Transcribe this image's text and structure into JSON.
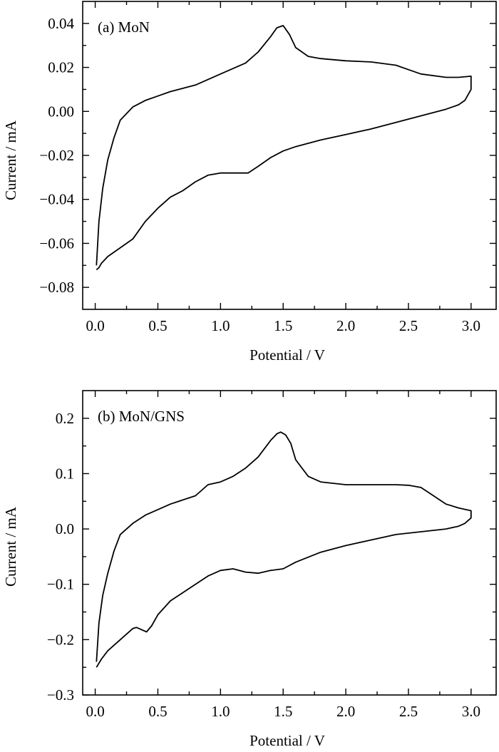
{
  "chart_data": [
    {
      "type": "line",
      "panel_label": "(a) MoN",
      "xlabel": "Potential / V",
      "ylabel": "Current / mA",
      "xlim": [
        -0.1,
        3.2
      ],
      "ylim": [
        -0.09,
        0.05
      ],
      "x_ticks": [
        0.0,
        0.5,
        1.0,
        1.5,
        2.0,
        2.5,
        3.0
      ],
      "x_tick_labels": [
        "0.0",
        "0.5",
        "1.0",
        "1.5",
        "2.0",
        "2.5",
        "3.0"
      ],
      "y_ticks": [
        -0.08,
        -0.06,
        -0.04,
        -0.02,
        0.0,
        0.02,
        0.04
      ],
      "y_tick_labels": [
        "−0.08",
        "−0.06",
        "−0.04",
        "−0.02",
        "0.00",
        "0.02",
        "0.04"
      ],
      "series": [
        {
          "x": [
            0.01,
            0.03,
            0.06,
            0.1,
            0.15,
            0.2,
            0.3,
            0.4,
            0.5,
            0.6,
            0.8,
            1.0,
            1.2,
            1.3,
            1.4,
            1.45,
            1.5,
            1.55,
            1.6,
            1.7,
            1.8,
            2.0,
            2.2,
            2.4,
            2.5,
            2.6,
            2.8,
            2.9,
            3.0,
            3.0,
            2.95,
            2.9,
            2.8,
            2.6,
            2.4,
            2.2,
            2.0,
            1.8,
            1.6,
            1.5,
            1.4,
            1.3,
            1.22,
            1.1,
            1.0,
            0.9,
            0.8,
            0.7,
            0.6,
            0.5,
            0.4,
            0.3,
            0.2,
            0.1,
            0.05,
            0.03,
            0.01
          ],
          "y": [
            -0.07,
            -0.05,
            -0.035,
            -0.022,
            -0.012,
            -0.004,
            0.002,
            0.005,
            0.007,
            0.009,
            0.012,
            0.017,
            0.022,
            0.027,
            0.034,
            0.038,
            0.039,
            0.035,
            0.029,
            0.025,
            0.024,
            0.023,
            0.0225,
            0.021,
            0.019,
            0.017,
            0.0155,
            0.0155,
            0.016,
            0.01,
            0.005,
            0.003,
            0.001,
            -0.002,
            -0.005,
            -0.008,
            -0.0105,
            -0.013,
            -0.016,
            -0.018,
            -0.021,
            -0.025,
            -0.028,
            -0.028,
            -0.028,
            -0.029,
            -0.032,
            -0.036,
            -0.039,
            -0.044,
            -0.05,
            -0.058,
            -0.062,
            -0.066,
            -0.069,
            -0.071,
            -0.072
          ]
        }
      ]
    },
    {
      "type": "line",
      "panel_label": "(b) MoN/GNS",
      "xlabel": "Potential / V",
      "ylabel": "Current / mA",
      "xlim": [
        -0.1,
        3.2
      ],
      "ylim": [
        -0.3,
        0.25
      ],
      "x_ticks": [
        0.0,
        0.5,
        1.0,
        1.5,
        2.0,
        2.5,
        3.0
      ],
      "x_tick_labels": [
        "0.0",
        "0.5",
        "1.0",
        "1.5",
        "2.0",
        "2.5",
        "3.0"
      ],
      "y_ticks": [
        -0.3,
        -0.2,
        -0.1,
        0.0,
        0.1,
        0.2
      ],
      "y_tick_labels": [
        "−0.3",
        "−0.2",
        "−0.1",
        "0.0",
        "0.1",
        "0.2"
      ],
      "series": [
        {
          "x": [
            0.01,
            0.03,
            0.06,
            0.1,
            0.15,
            0.2,
            0.3,
            0.4,
            0.5,
            0.6,
            0.8,
            0.9,
            1.0,
            1.1,
            1.2,
            1.3,
            1.4,
            1.45,
            1.48,
            1.52,
            1.56,
            1.6,
            1.7,
            1.8,
            2.0,
            2.2,
            2.4,
            2.5,
            2.6,
            2.7,
            2.8,
            2.9,
            3.0,
            3.0,
            2.95,
            2.9,
            2.8,
            2.6,
            2.4,
            2.2,
            2.0,
            1.8,
            1.6,
            1.5,
            1.4,
            1.3,
            1.2,
            1.1,
            1.0,
            0.9,
            0.8,
            0.7,
            0.6,
            0.5,
            0.45,
            0.41,
            0.38,
            0.33,
            0.3,
            0.2,
            0.1,
            0.05,
            0.01
          ],
          "y": [
            -0.24,
            -0.17,
            -0.12,
            -0.08,
            -0.04,
            -0.01,
            0.01,
            0.025,
            0.035,
            0.045,
            0.06,
            0.08,
            0.085,
            0.095,
            0.11,
            0.13,
            0.16,
            0.172,
            0.175,
            0.17,
            0.155,
            0.125,
            0.095,
            0.085,
            0.08,
            0.08,
            0.08,
            0.079,
            0.075,
            0.06,
            0.045,
            0.038,
            0.033,
            0.02,
            0.01,
            0.005,
            0.0,
            -0.005,
            -0.01,
            -0.02,
            -0.03,
            -0.042,
            -0.06,
            -0.072,
            -0.075,
            -0.08,
            -0.078,
            -0.072,
            -0.075,
            -0.085,
            -0.1,
            -0.115,
            -0.13,
            -0.155,
            -0.175,
            -0.186,
            -0.183,
            -0.178,
            -0.18,
            -0.2,
            -0.22,
            -0.235,
            -0.25
          ]
        }
      ]
    }
  ]
}
